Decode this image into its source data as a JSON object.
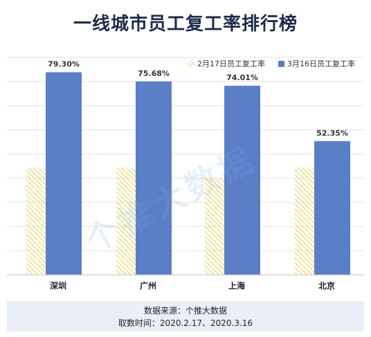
{
  "title": "一线城市员工复工率排行榜",
  "watermark": "个推大数据",
  "source": {
    "line1": "数据来源：个推大数据",
    "line2": "取数时间：2020.2.17、2020.3.16"
  },
  "colors": {
    "series1": "#e8d247",
    "series2": "#5b7fc7",
    "grid": "#e3e3e3",
    "title": "#1c2b4a"
  },
  "chart_data": {
    "type": "bar",
    "categories": [
      "深圳",
      "广州",
      "上海",
      "北京"
    ],
    "series": [
      {
        "name": "2月17日员工复工率",
        "values": [
          42,
          42,
          38,
          42
        ],
        "pattern": "diagonal-hatch"
      },
      {
        "name": "3月16日员工复工率",
        "values": [
          79.3,
          75.68,
          74.01,
          52.35
        ],
        "labels": [
          "79.30%",
          "75.68%",
          "74.01%",
          "52.35%"
        ]
      }
    ],
    "ylim": [
      0,
      80
    ],
    "grid": true,
    "legend": "top-right"
  }
}
